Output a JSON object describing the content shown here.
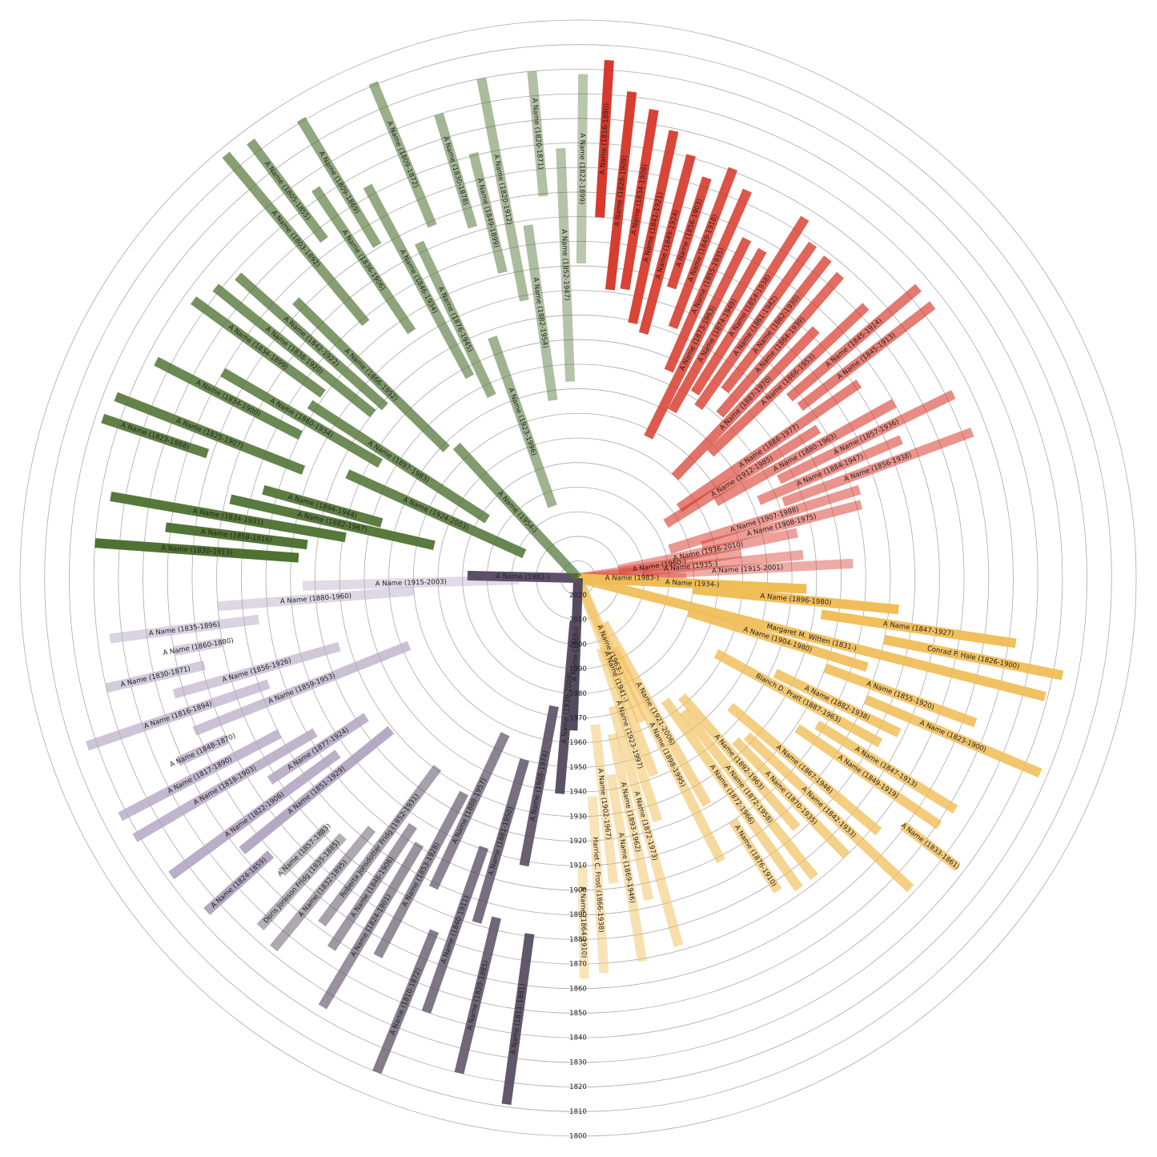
{
  "chart_data": {
    "type": "radial-tree",
    "ylim": [
      2027,
      1800
    ],
    "yticks": [
      1800,
      1810,
      1820,
      1830,
      1840,
      1850,
      1860,
      1870,
      1880,
      1890,
      1900,
      1910,
      1920,
      1930,
      1940,
      1950,
      1960,
      1970,
      1980,
      1990,
      2000,
      2010,
      2020
    ],
    "groups": [
      {
        "color": "#d73a2c",
        "people": [
          {
            "label": "A Name (1816-1880)",
            "birth": 1816,
            "death": 1880
          },
          {
            "label": "A Name (1828-1909)",
            "birth": 1828,
            "death": 1909
          },
          {
            "label": "A Name (1834-1908)",
            "birth": 1834,
            "death": 1908
          },
          {
            "label": "A Name (1841-1921)",
            "birth": 1841,
            "death": 1921
          },
          {
            "label": "A Name (1849-1924)",
            "birth": 1849,
            "death": 1924
          },
          {
            "label": "A Name (1856-1903)",
            "birth": 1856,
            "death": 1903
          },
          {
            "label": "A Name (1849-1918)",
            "birth": 1849,
            "death": 1918
          },
          {
            "label": "A Name (1855-1935)",
            "birth": 1855,
            "death": 1935
          },
          {
            "label": "A Name (1873-1963)",
            "birth": 1873,
            "death": 1963
          },
          {
            "label": "A Name (1874-1949)",
            "birth": 1874,
            "death": 1949
          },
          {
            "label": "A Name (1854-1938)",
            "birth": 1854,
            "death": 1938
          },
          {
            "label": "A Name (1861-1942)",
            "birth": 1861,
            "death": 1942
          },
          {
            "label": "A Name (1862-1930)",
            "birth": 1862,
            "death": 1930
          },
          {
            "label": "A Name (1864-1939)",
            "birth": 1864,
            "death": 1939
          },
          {
            "label": "A Name (1887-1970)",
            "birth": 1887,
            "death": 1970
          },
          {
            "label": "A Name (1866-1953)",
            "birth": 1866,
            "death": 1953
          },
          {
            "label": "A Name (1845-1914)",
            "birth": 1845,
            "death": 1914
          },
          {
            "label": "A Name (1845-1913)",
            "birth": 1845,
            "death": 1913
          },
          {
            "label": "A Name (1888-1977)",
            "birth": 1888,
            "death": 1977
          },
          {
            "label": "A Name (1912-1985)",
            "birth": 1912,
            "death": 1985
          },
          {
            "label": "A Name (1880-1963)",
            "birth": 1880,
            "death": 1963
          },
          {
            "label": "A Name (1857-1936)",
            "birth": 1857,
            "death": 1936
          },
          {
            "label": "A Name (1884-1947)",
            "birth": 1884,
            "death": 1947
          },
          {
            "label": "A Name (1856-1938)",
            "birth": 1856,
            "death": 1938
          },
          {
            "label": "A Name (1907-1988)",
            "birth": 1907,
            "death": 1988
          },
          {
            "label": "A Name (1908-1975)",
            "birth": 1908,
            "death": 1975
          },
          {
            "label": "A Name (1936-2010)",
            "birth": 1936,
            "death": 2010
          },
          {
            "label": "A Name (1960-)",
            "birth": 1960,
            "death": null
          },
          {
            "label": "A Name (1935-)",
            "birth": 1935,
            "death": null
          },
          {
            "label": "A Name (1915-2001)",
            "birth": 1915,
            "death": 2001
          },
          {
            "label": "A Name (1983-)",
            "birth": 1983,
            "death": null
          }
        ]
      },
      {
        "color": "#f0bd55",
        "people": [
          {
            "label": "A Name (1934-)",
            "birth": 1934,
            "death": null
          },
          {
            "label": "A Name (1896-1980)",
            "birth": 1896,
            "death": 1980
          },
          {
            "label": "A Name (1847-1927)",
            "birth": 1847,
            "death": 1927
          },
          {
            "label": "Conrad P. Hale (1826-1900)",
            "birth": 1826,
            "death": 1900
          },
          {
            "label": "Margaret M. Witten (1831-)",
            "birth": 1831,
            "death": null
          },
          {
            "label": "A Name (1904-1980)",
            "birth": 1904,
            "death": 1980
          },
          {
            "label": "A Name (1855-1920)",
            "birth": 1855,
            "death": 1920
          },
          {
            "label": "A Name (1823-1900)",
            "birth": 1823,
            "death": 1900
          },
          {
            "label": "A Name (1882-1938)",
            "birth": 1882,
            "death": 1938
          },
          {
            "label": "Blanch D. Pratt (1887-1963)",
            "birth": 1887,
            "death": 1963
          },
          {
            "label": "A Name (1847-1913)",
            "birth": 1847,
            "death": 1913
          },
          {
            "label": "A Name (1849-1919)",
            "birth": 1849,
            "death": 1919
          },
          {
            "label": "A Name (1833-1861)",
            "birth": 1833,
            "death": 1861
          },
          {
            "label": "A Name (1867-1946)",
            "birth": 1867,
            "death": 1946
          },
          {
            "label": "A Name (1842-1933)",
            "birth": 1842,
            "death": 1933
          },
          {
            "label": "A Name (1870-1935)",
            "birth": 1870,
            "death": 1935
          },
          {
            "label": "A Name (1892-1963)",
            "birth": 1892,
            "death": 1963
          },
          {
            "label": "A Name (1872-1958)",
            "birth": 1872,
            "death": 1958
          },
          {
            "label": "A Name (1872-1966)",
            "birth": 1872,
            "death": 1966
          },
          {
            "label": "A Name (1876-1910)",
            "birth": 1876,
            "death": 1910
          },
          {
            "label": "A Name (1921-2006)",
            "birth": 1921,
            "death": 2006
          },
          {
            "label": "A Name (1898-1995)",
            "birth": 1898,
            "death": 1995
          },
          {
            "label": "A Name (1963-)",
            "birth": 1963,
            "death": null
          },
          {
            "label": "A Name (1941-)",
            "birth": 1941,
            "death": null
          },
          {
            "label": "A Name (1923-1997)",
            "birth": 1923,
            "death": 1997
          },
          {
            "label": "A Name (1872-1973)",
            "birth": 1872,
            "death": 1973
          },
          {
            "label": "A Name (1893-1962)",
            "birth": 1893,
            "death": 1962
          },
          {
            "label": "A Name (1869-1946)",
            "birth": 1869,
            "death": 1946
          },
          {
            "label": "A Name (1902-1967)",
            "birth": 1902,
            "death": 1967
          },
          {
            "label": "Harriet C. Frost (1866-1938)",
            "birth": 1866,
            "death": 1938
          },
          {
            "label": "A Name (1864-1910)",
            "birth": 1864,
            "death": 1910
          }
        ]
      },
      {
        "color": "#554a5e",
        "people": [
          {
            "label": "A Name (1965-)",
            "birth": 1965,
            "death": null
          },
          {
            "label": "A Name (1939-2009)",
            "birth": 1939,
            "death": 2009
          },
          {
            "label": "A Name (1811-1881)",
            "birth": 1811,
            "death": 1881
          },
          {
            "label": "A Name (1908-1974)",
            "birth": 1908,
            "death": 1974
          },
          {
            "label": "A Name (1820-1885)",
            "birth": 1820,
            "death": 1885
          },
          {
            "label": "A Name (1881-1950)",
            "birth": 1881,
            "death": 1950
          },
          {
            "label": "A Name (1840-1911)",
            "birth": 1840,
            "death": 1911
          },
          {
            "label": "A Name (1810-1872)",
            "birth": 1810,
            "death": 1872
          },
          {
            "label": "A Name (1888-1957)",
            "birth": 1888,
            "death": 1957
          },
          {
            "label": "A Name (1853-1928)",
            "birth": 1853,
            "death": 1928
          },
          {
            "label": "A Name (1824-1901)",
            "birth": 1824,
            "death": 1901
          },
          {
            "label": "A Name (1846-1906)",
            "birth": 1846,
            "death": 1906
          },
          {
            "label": "Roberta Jonsdotter Fridg (1852-1931)",
            "birth": 1852,
            "death": 1931
          },
          {
            "label": "A Name (1832-1895)",
            "birth": 1832,
            "death": 1895
          },
          {
            "label": "Doris Jonsson Fridg (1835-1885)",
            "birth": 1835,
            "death": 1885
          },
          {
            "label": "A Name (1857-1883)",
            "birth": 1857,
            "death": 1883
          }
        ]
      },
      {
        "color": "#b3a6c2",
        "people": [
          {
            "label": "A Name (1824-1859)",
            "birth": 1824,
            "death": 1859
          },
          {
            "label": "A Name (1851-1929)",
            "birth": 1851,
            "death": 1929
          },
          {
            "label": "A Name (1822-1906)",
            "birth": 1822,
            "death": 1906
          },
          {
            "label": "A Name (1877-1924)",
            "birth": 1877,
            "death": 1924
          },
          {
            "label": "A Name (1818-1903)",
            "birth": 1818,
            "death": 1903
          },
          {
            "label": "A Name (1817-1890)",
            "birth": 1817,
            "death": 1890
          },
          {
            "label": "A Name (1848-1870)",
            "birth": 1848,
            "death": 1870
          },
          {
            "label": "A Name (1859-1953)",
            "birth": 1859,
            "death": 1953
          },
          {
            "label": "A Name (1816-1894)",
            "birth": 1816,
            "death": 1894
          },
          {
            "label": "A Name (1856-1926)",
            "birth": 1856,
            "death": 1926
          },
          {
            "label": "A Name (1830-1871)",
            "birth": 1830,
            "death": 1871
          },
          {
            "label": "A Name (1860-1880)",
            "birth": 1860,
            "death": 1880
          },
          {
            "label": "A Name (1835-1896)",
            "birth": 1835,
            "death": 1896
          },
          {
            "label": "A Name (1880-1960)",
            "birth": 1880,
            "death": 1960
          },
          {
            "label": "A Name (1915-2003)",
            "birth": 1915,
            "death": 2003
          }
        ]
      },
      {
        "color": "#5b5067",
        "people": [
          {
            "label": "A Name (1982-)",
            "birth": 1982,
            "death": null
          }
        ]
      },
      {
        "color": "#4f7232",
        "people": [
          {
            "label": "A Name (1830-1913)",
            "birth": 1830,
            "death": 1913
          },
          {
            "label": "A Name (1858-1916)",
            "birth": 1858,
            "death": 1916
          },
          {
            "label": "A Name (1834-1931)",
            "birth": 1834,
            "death": 1931
          },
          {
            "label": "A Name (1882-1967)",
            "birth": 1882,
            "death": 1967
          },
          {
            "label": "A Name (1894-1944)",
            "birth": 1894,
            "death": 1944
          },
          {
            "label": "A Name (1823-1868)",
            "birth": 1823,
            "death": 1868
          },
          {
            "label": "A Name (1825-1907)",
            "birth": 1825,
            "death": 1907
          },
          {
            "label": "A Name (1924-2003)",
            "birth": 1924,
            "death": 2003
          },
          {
            "label": "A Name (1834-1900)",
            "birth": 1834,
            "death": 1900
          },
          {
            "label": "A Name (1860-1934)",
            "birth": 1860,
            "death": 1934
          },
          {
            "label": "A Name (1897-1983)",
            "birth": 1897,
            "death": 1983
          },
          {
            "label": "A Name (1834-1899)",
            "birth": 1834,
            "death": 1899
          },
          {
            "label": "A Name (1838-1920)",
            "birth": 1838,
            "death": 1920
          },
          {
            "label": "A Name (1842-1922)",
            "birth": 1842,
            "death": 1922
          },
          {
            "label": "A Name (1866-1952)",
            "birth": 1866,
            "death": 1952
          },
          {
            "label": "A Name (1954-)",
            "birth": 1954,
            "death": null
          },
          {
            "label": "A Name (1803-1892)",
            "birth": 1803,
            "death": 1892
          },
          {
            "label": "A Name (1805-1855)",
            "birth": 1805,
            "death": 1855
          },
          {
            "label": "A Name (1836-1906)",
            "birth": 1836,
            "death": 1906
          },
          {
            "label": "A Name (1809-1869)",
            "birth": 1809,
            "death": 1869
          },
          {
            "label": "A Name (1846-1934)",
            "birth": 1846,
            "death": 1934
          },
          {
            "label": "A Name (1876-1945)",
            "birth": 1876,
            "death": 1945
          },
          {
            "label": "A Name (1809-1872)",
            "birth": 1809,
            "death": 1872
          },
          {
            "label": "A Name (1923-1996)",
            "birth": 1923,
            "death": 1996
          },
          {
            "label": "A Name (1830-1878)",
            "birth": 1830,
            "death": 1878
          },
          {
            "label": "A Name (1849-1899)",
            "birth": 1849,
            "death": 1899
          },
          {
            "label": "A Name (1820-1912)",
            "birth": 1820,
            "death": 1912
          },
          {
            "label": "A Name (1882-1954)",
            "birth": 1882,
            "death": 1954
          },
          {
            "label": "A Name (1820-1871)",
            "birth": 1820,
            "death": 1871
          },
          {
            "label": "A Name (1852-1947)",
            "birth": 1852,
            "death": 1947
          },
          {
            "label": "A Name (1822-1899)",
            "birth": 1822,
            "death": 1899
          }
        ]
      }
    ]
  }
}
